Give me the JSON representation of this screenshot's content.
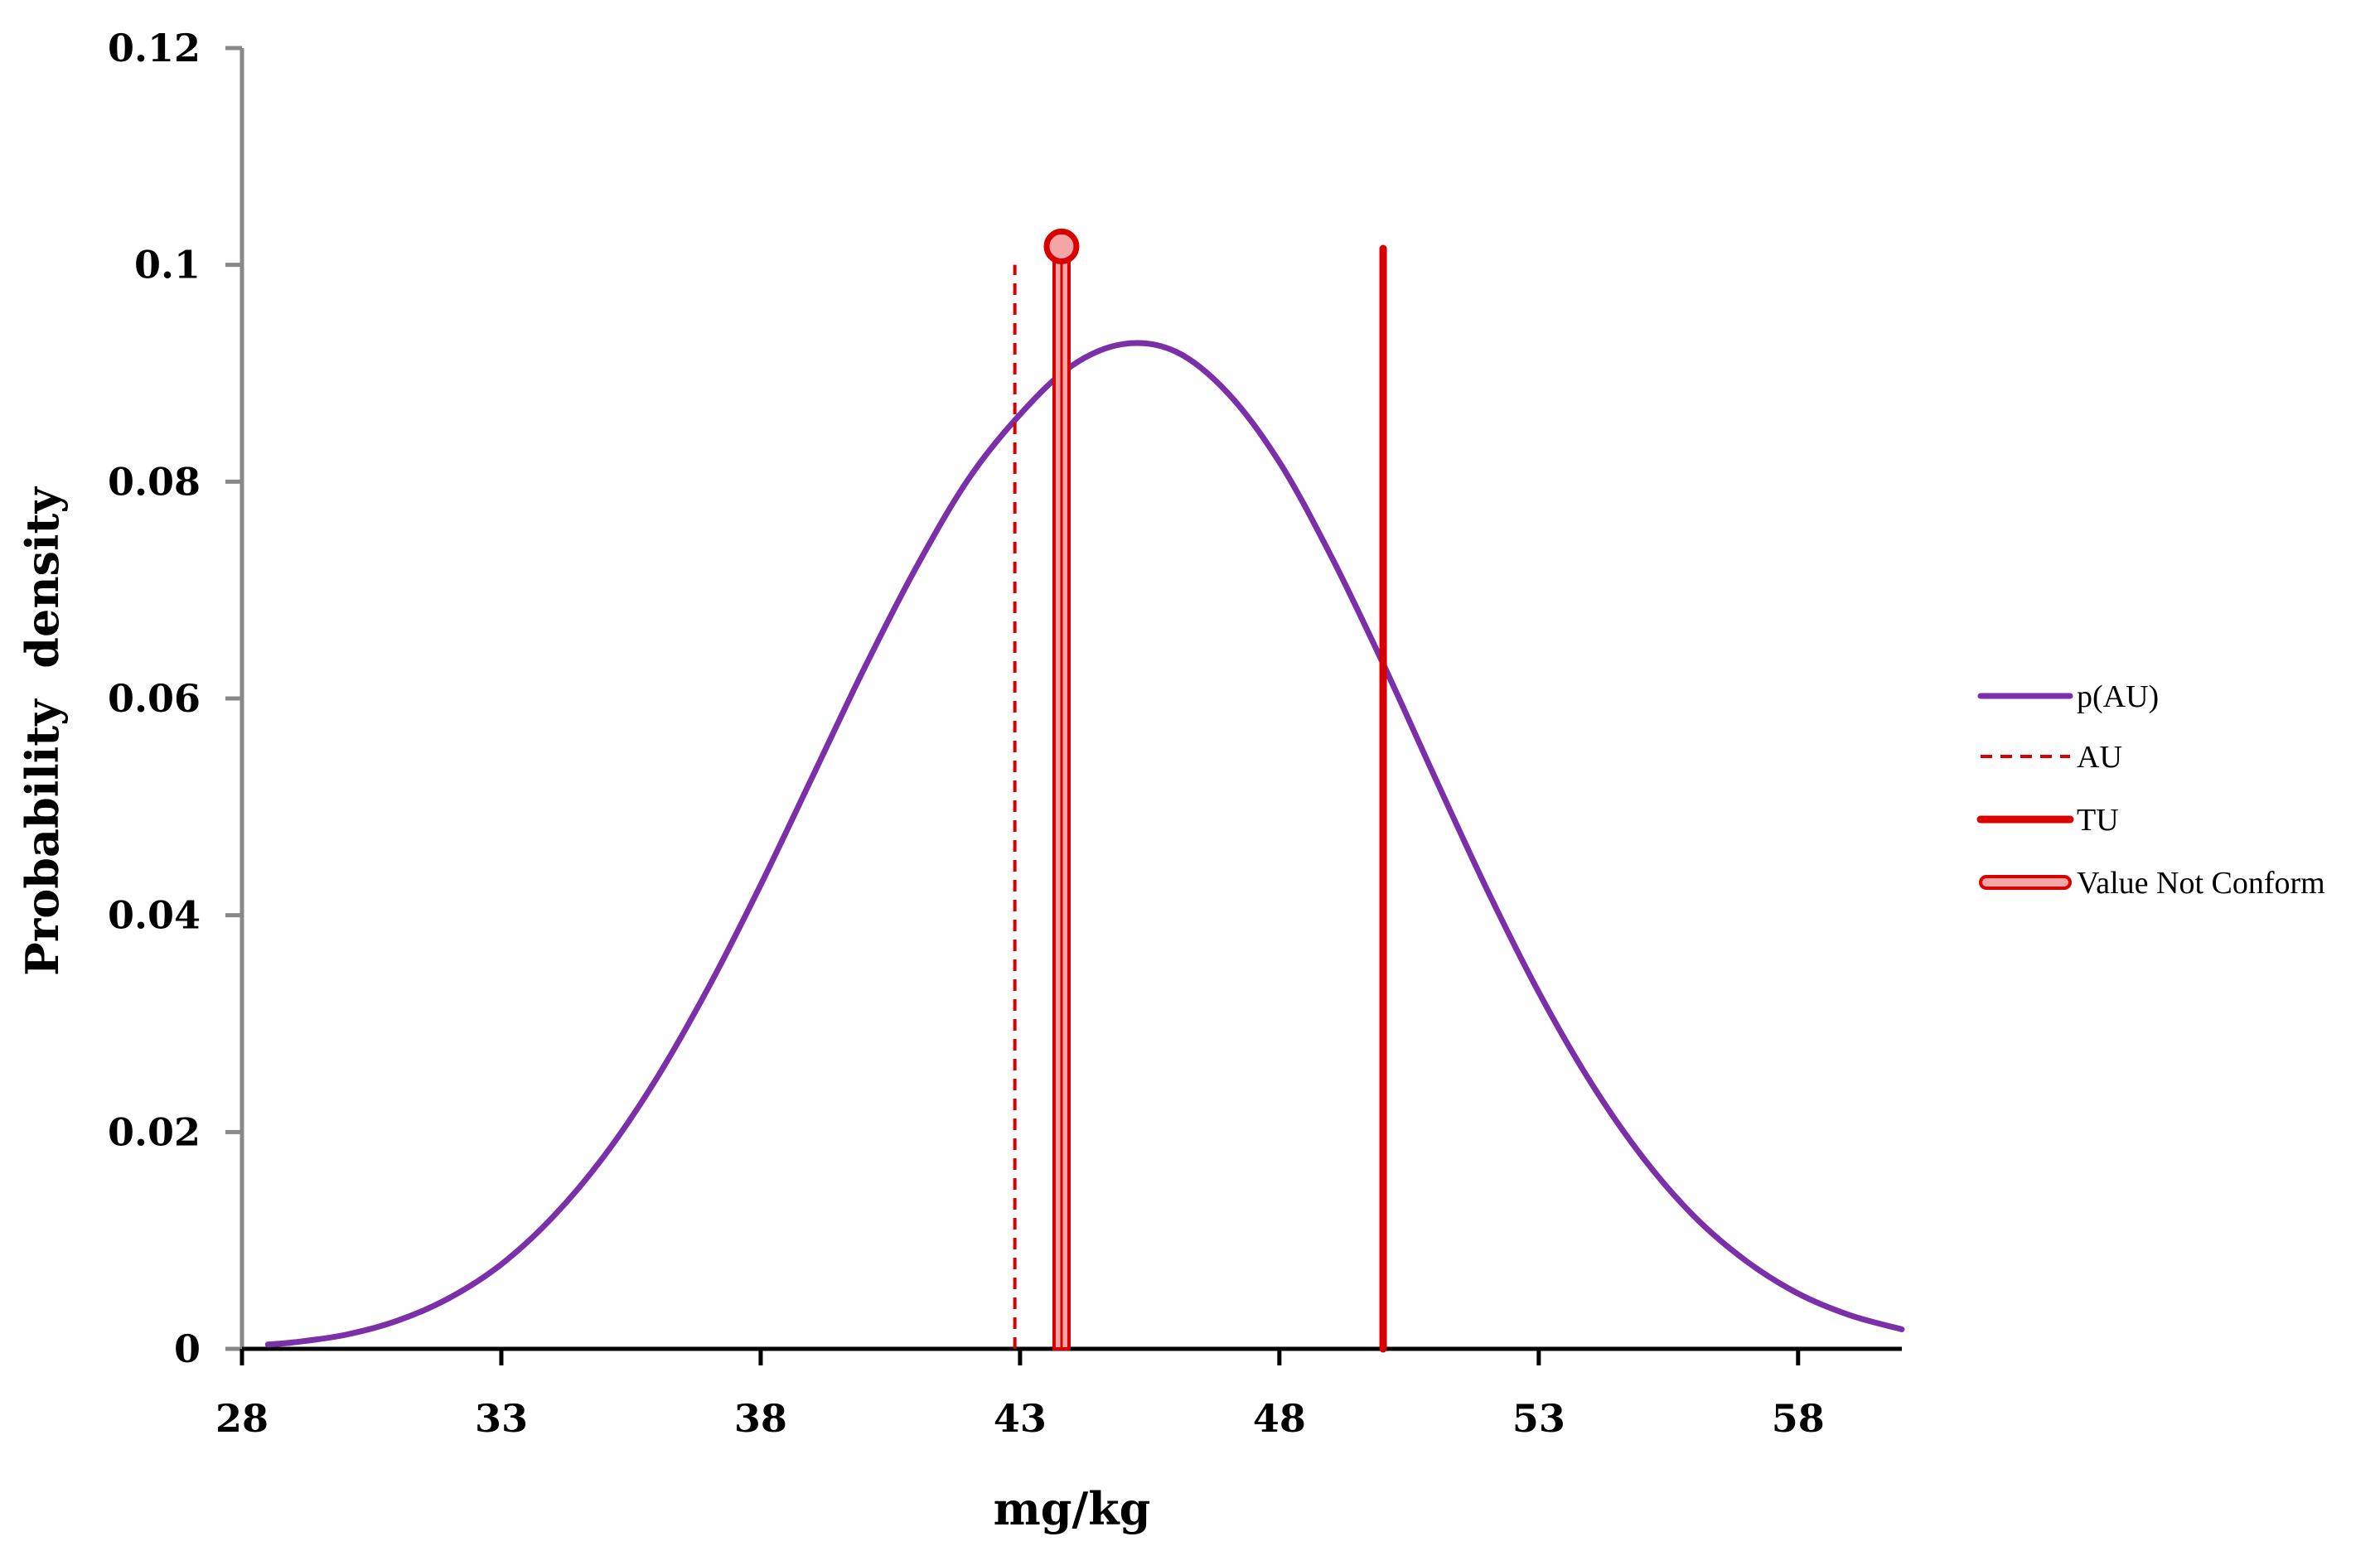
{
  "chart_data": {
    "type": "line",
    "xlabel": "mg/kg",
    "ylabel": "Probability  density",
    "xlim": [
      28,
      60
    ],
    "ylim": [
      0,
      0.12
    ],
    "x_ticks": [
      "28",
      "33",
      "38",
      "43",
      "48",
      "53",
      "58"
    ],
    "y_ticks": [
      "0",
      "0.02",
      "0.04",
      "0.06",
      "0.08",
      "0.1",
      "0.12"
    ],
    "grid": false,
    "legend_position": "right",
    "colors": {
      "curve": "#7B2FA8",
      "au": "#D90000",
      "tu": "#D90000",
      "value_outline": "#D90000",
      "value_fill": "#F4A6A6",
      "axis": "#888888",
      "baseline": "#000000"
    },
    "curve": {
      "name": "p(AU)",
      "x": [
        28.5,
        29,
        30,
        31,
        32,
        33,
        34,
        35,
        36,
        37,
        38,
        39,
        40,
        41,
        42,
        43,
        44,
        45,
        46,
        47,
        48,
        49,
        50,
        51,
        52,
        53,
        54,
        55,
        56,
        57,
        58,
        59,
        60
      ],
      "y": [
        0.0004,
        0.0006,
        0.0013,
        0.0026,
        0.0047,
        0.0078,
        0.0122,
        0.0179,
        0.025,
        0.0334,
        0.0428,
        0.0528,
        0.0628,
        0.0721,
        0.0802,
        0.0862,
        0.0907,
        0.0927,
        0.092,
        0.0882,
        0.0818,
        0.0731,
        0.0632,
        0.0527,
        0.0424,
        0.0329,
        0.0246,
        0.0177,
        0.0122,
        0.0081,
        0.0051,
        0.0031,
        0.0018
      ]
    },
    "au": {
      "name": "AU",
      "x": 42.9,
      "y_top": 0.1
    },
    "tu": {
      "name": "TU",
      "x": 50.0,
      "y_top": 0.1015
    },
    "value": {
      "name": "Value Not Conform",
      "x": 43.8,
      "y": 0.1017
    },
    "legend": [
      "p(AU)",
      "AU",
      "TU",
      "Value Not Conform"
    ]
  }
}
